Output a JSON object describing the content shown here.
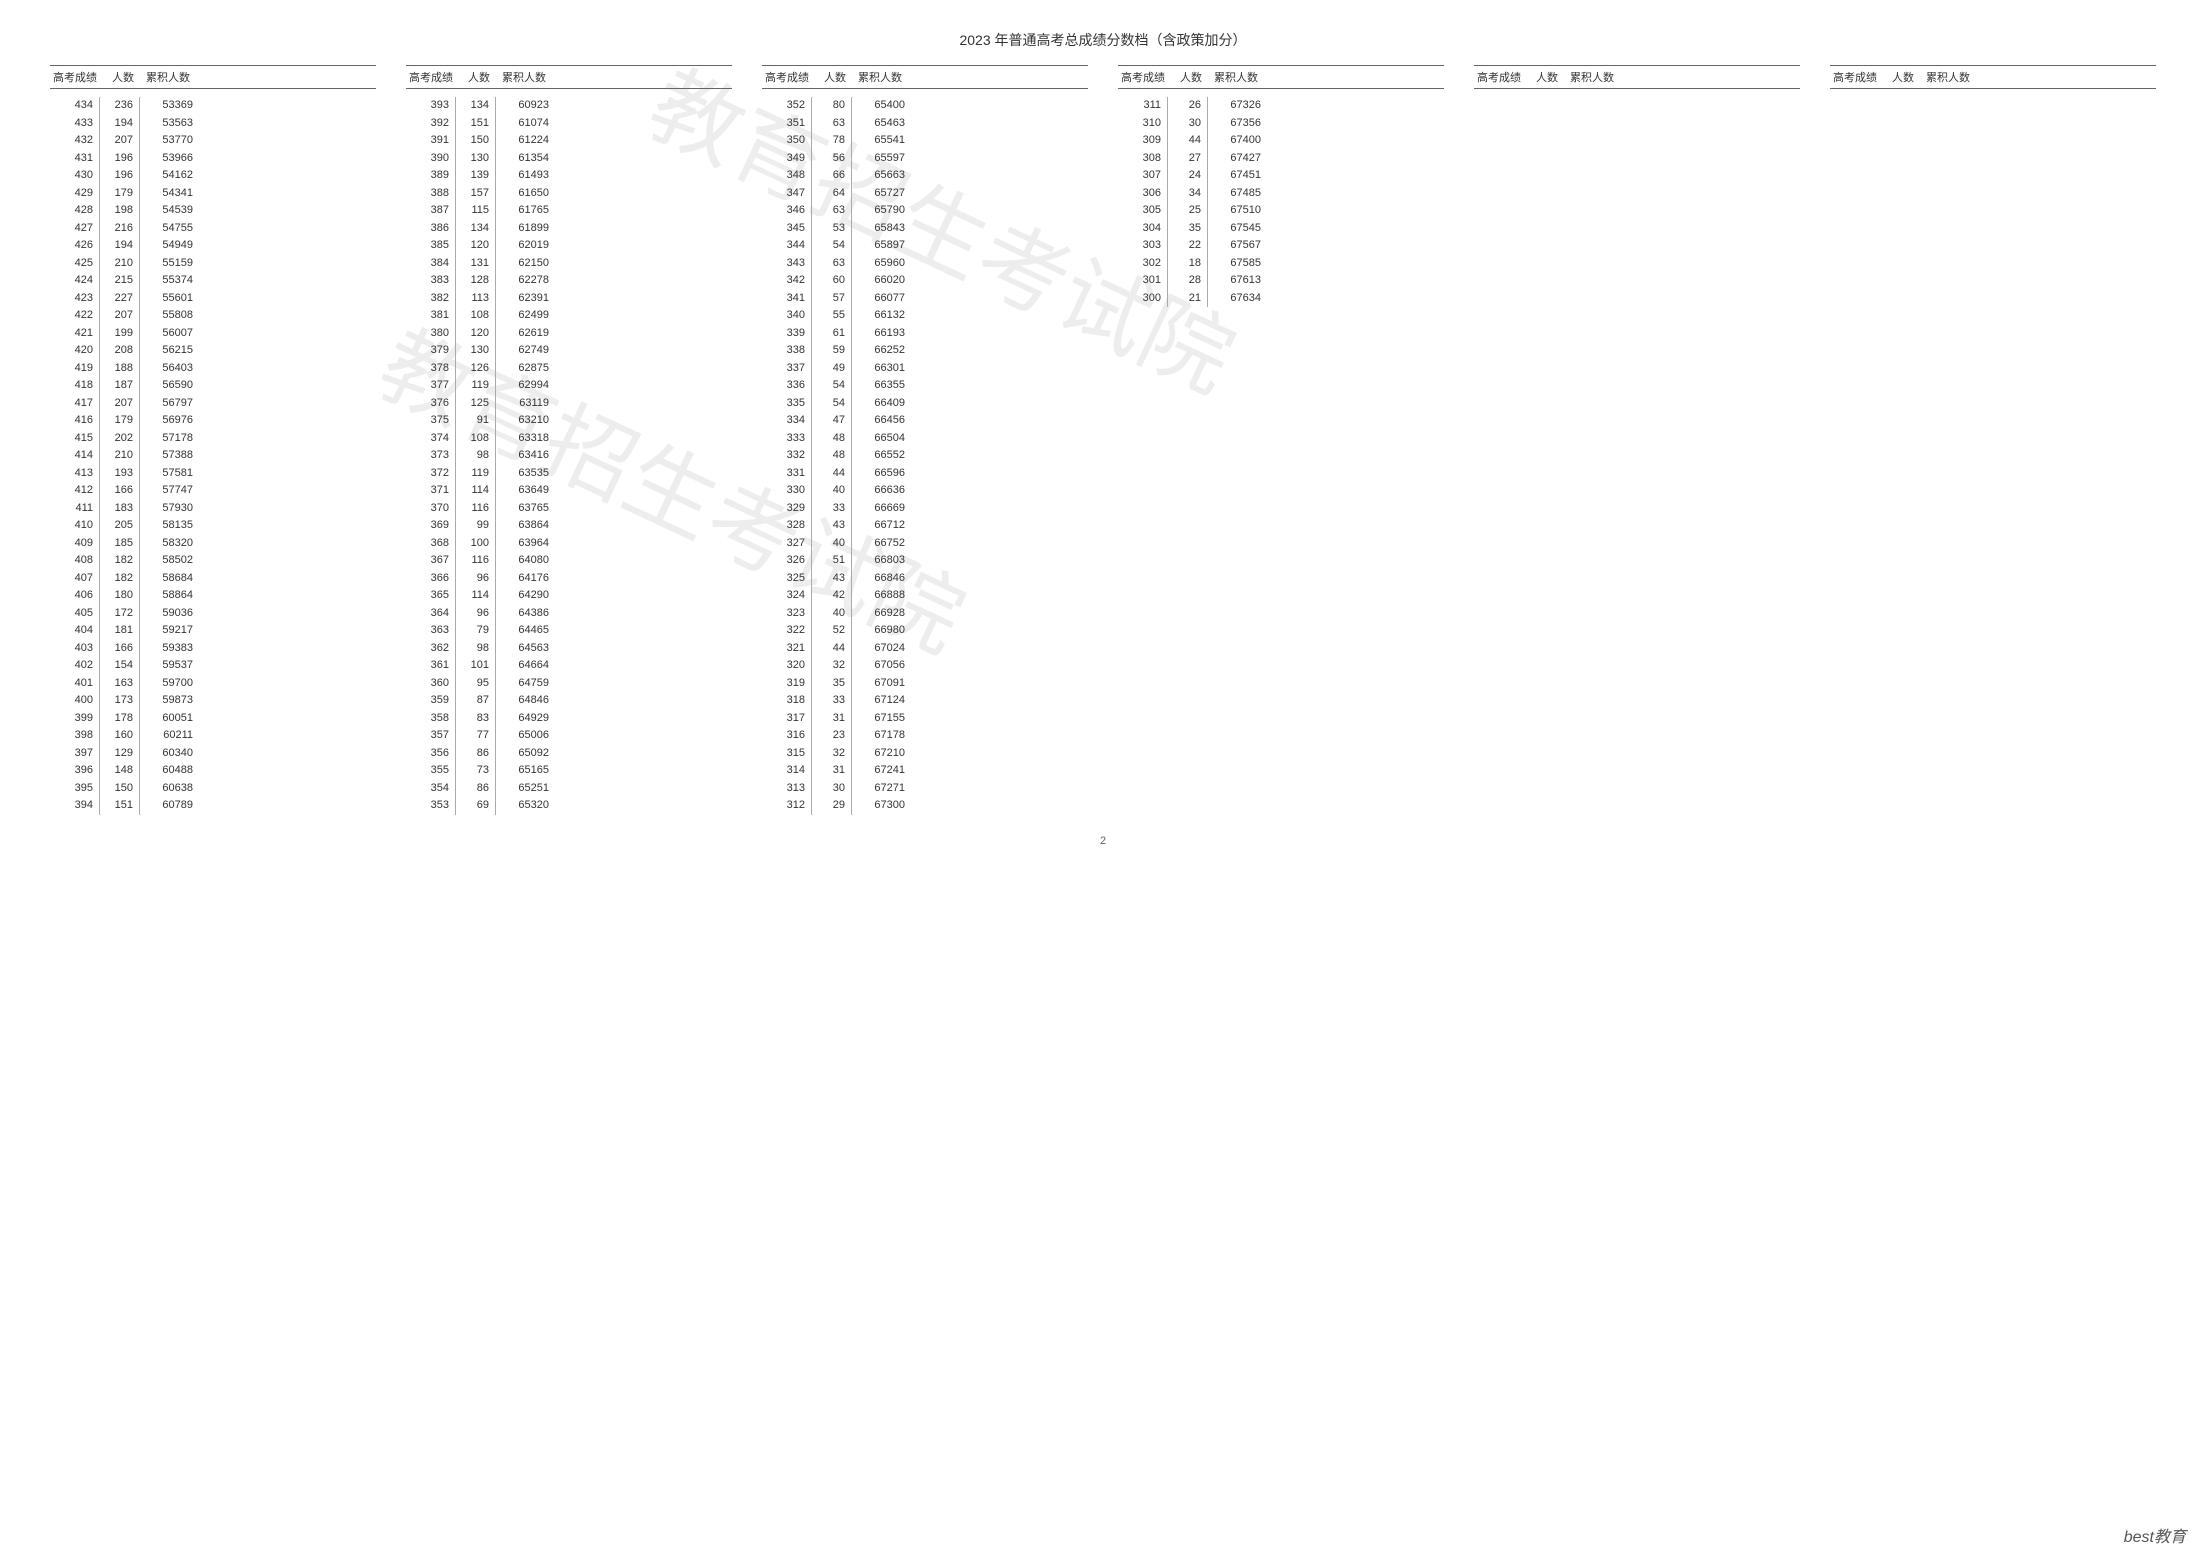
{
  "title": "2023 年普通高考总成绩分数档（含政策加分）",
  "page_number": "2",
  "footer_brand": "best教育",
  "headers": {
    "score": "高考成绩",
    "count": "人数",
    "cumulative": "累积人数"
  },
  "watermark_text": "教育招生考试院",
  "columns": [
    [
      {
        "s": 434,
        "c": 236,
        "m": 53369
      },
      {
        "s": 433,
        "c": 194,
        "m": 53563
      },
      {
        "s": 432,
        "c": 207,
        "m": 53770
      },
      {
        "s": 431,
        "c": 196,
        "m": 53966
      },
      {
        "s": 430,
        "c": 196,
        "m": 54162
      },
      {
        "s": 429,
        "c": 179,
        "m": 54341
      },
      {
        "s": 428,
        "c": 198,
        "m": 54539
      },
      {
        "s": 427,
        "c": 216,
        "m": 54755
      },
      {
        "s": 426,
        "c": 194,
        "m": 54949
      },
      {
        "s": 425,
        "c": 210,
        "m": 55159
      },
      {
        "s": 424,
        "c": 215,
        "m": 55374
      },
      {
        "s": 423,
        "c": 227,
        "m": 55601
      },
      {
        "s": 422,
        "c": 207,
        "m": 55808
      },
      {
        "s": 421,
        "c": 199,
        "m": 56007
      },
      {
        "s": 420,
        "c": 208,
        "m": 56215
      },
      {
        "s": 419,
        "c": 188,
        "m": 56403
      },
      {
        "s": 418,
        "c": 187,
        "m": 56590
      },
      {
        "s": 417,
        "c": 207,
        "m": 56797
      },
      {
        "s": 416,
        "c": 179,
        "m": 56976
      },
      {
        "s": 415,
        "c": 202,
        "m": 57178
      },
      {
        "s": 414,
        "c": 210,
        "m": 57388
      },
      {
        "s": 413,
        "c": 193,
        "m": 57581
      },
      {
        "s": 412,
        "c": 166,
        "m": 57747
      },
      {
        "s": 411,
        "c": 183,
        "m": 57930
      },
      {
        "s": 410,
        "c": 205,
        "m": 58135
      },
      {
        "s": 409,
        "c": 185,
        "m": 58320
      },
      {
        "s": 408,
        "c": 182,
        "m": 58502
      },
      {
        "s": 407,
        "c": 182,
        "m": 58684
      },
      {
        "s": 406,
        "c": 180,
        "m": 58864
      },
      {
        "s": 405,
        "c": 172,
        "m": 59036
      },
      {
        "s": 404,
        "c": 181,
        "m": 59217
      },
      {
        "s": 403,
        "c": 166,
        "m": 59383
      },
      {
        "s": 402,
        "c": 154,
        "m": 59537
      },
      {
        "s": 401,
        "c": 163,
        "m": 59700
      },
      {
        "s": 400,
        "c": 173,
        "m": 59873
      },
      {
        "s": 399,
        "c": 178,
        "m": 60051
      },
      {
        "s": 398,
        "c": 160,
        "m": 60211
      },
      {
        "s": 397,
        "c": 129,
        "m": 60340
      },
      {
        "s": 396,
        "c": 148,
        "m": 60488
      },
      {
        "s": 395,
        "c": 150,
        "m": 60638
      },
      {
        "s": 394,
        "c": 151,
        "m": 60789
      }
    ],
    [
      {
        "s": 393,
        "c": 134,
        "m": 60923
      },
      {
        "s": 392,
        "c": 151,
        "m": 61074
      },
      {
        "s": 391,
        "c": 150,
        "m": 61224
      },
      {
        "s": 390,
        "c": 130,
        "m": 61354
      },
      {
        "s": 389,
        "c": 139,
        "m": 61493
      },
      {
        "s": 388,
        "c": 157,
        "m": 61650
      },
      {
        "s": 387,
        "c": 115,
        "m": 61765
      },
      {
        "s": 386,
        "c": 134,
        "m": 61899
      },
      {
        "s": 385,
        "c": 120,
        "m": 62019
      },
      {
        "s": 384,
        "c": 131,
        "m": 62150
      },
      {
        "s": 383,
        "c": 128,
        "m": 62278
      },
      {
        "s": 382,
        "c": 113,
        "m": 62391
      },
      {
        "s": 381,
        "c": 108,
        "m": 62499
      },
      {
        "s": 380,
        "c": 120,
        "m": 62619
      },
      {
        "s": 379,
        "c": 130,
        "m": 62749
      },
      {
        "s": 378,
        "c": 126,
        "m": 62875
      },
      {
        "s": 377,
        "c": 119,
        "m": 62994
      },
      {
        "s": 376,
        "c": 125,
        "m": 63119
      },
      {
        "s": 375,
        "c": 91,
        "m": 63210
      },
      {
        "s": 374,
        "c": 108,
        "m": 63318
      },
      {
        "s": 373,
        "c": 98,
        "m": 63416
      },
      {
        "s": 372,
        "c": 119,
        "m": 63535
      },
      {
        "s": 371,
        "c": 114,
        "m": 63649
      },
      {
        "s": 370,
        "c": 116,
        "m": 63765
      },
      {
        "s": 369,
        "c": 99,
        "m": 63864
      },
      {
        "s": 368,
        "c": 100,
        "m": 63964
      },
      {
        "s": 367,
        "c": 116,
        "m": 64080
      },
      {
        "s": 366,
        "c": 96,
        "m": 64176
      },
      {
        "s": 365,
        "c": 114,
        "m": 64290
      },
      {
        "s": 364,
        "c": 96,
        "m": 64386
      },
      {
        "s": 363,
        "c": 79,
        "m": 64465
      },
      {
        "s": 362,
        "c": 98,
        "m": 64563
      },
      {
        "s": 361,
        "c": 101,
        "m": 64664
      },
      {
        "s": 360,
        "c": 95,
        "m": 64759
      },
      {
        "s": 359,
        "c": 87,
        "m": 64846
      },
      {
        "s": 358,
        "c": 83,
        "m": 64929
      },
      {
        "s": 357,
        "c": 77,
        "m": 65006
      },
      {
        "s": 356,
        "c": 86,
        "m": 65092
      },
      {
        "s": 355,
        "c": 73,
        "m": 65165
      },
      {
        "s": 354,
        "c": 86,
        "m": 65251
      },
      {
        "s": 353,
        "c": 69,
        "m": 65320
      }
    ],
    [
      {
        "s": 352,
        "c": 80,
        "m": 65400
      },
      {
        "s": 351,
        "c": 63,
        "m": 65463
      },
      {
        "s": 350,
        "c": 78,
        "m": 65541
      },
      {
        "s": 349,
        "c": 56,
        "m": 65597
      },
      {
        "s": 348,
        "c": 66,
        "m": 65663
      },
      {
        "s": 347,
        "c": 64,
        "m": 65727
      },
      {
        "s": 346,
        "c": 63,
        "m": 65790
      },
      {
        "s": 345,
        "c": 53,
        "m": 65843
      },
      {
        "s": 344,
        "c": 54,
        "m": 65897
      },
      {
        "s": 343,
        "c": 63,
        "m": 65960
      },
      {
        "s": 342,
        "c": 60,
        "m": 66020
      },
      {
        "s": 341,
        "c": 57,
        "m": 66077
      },
      {
        "s": 340,
        "c": 55,
        "m": 66132
      },
      {
        "s": 339,
        "c": 61,
        "m": 66193
      },
      {
        "s": 338,
        "c": 59,
        "m": 66252
      },
      {
        "s": 337,
        "c": 49,
        "m": 66301
      },
      {
        "s": 336,
        "c": 54,
        "m": 66355
      },
      {
        "s": 335,
        "c": 54,
        "m": 66409
      },
      {
        "s": 334,
        "c": 47,
        "m": 66456
      },
      {
        "s": 333,
        "c": 48,
        "m": 66504
      },
      {
        "s": 332,
        "c": 48,
        "m": 66552
      },
      {
        "s": 331,
        "c": 44,
        "m": 66596
      },
      {
        "s": 330,
        "c": 40,
        "m": 66636
      },
      {
        "s": 329,
        "c": 33,
        "m": 66669
      },
      {
        "s": 328,
        "c": 43,
        "m": 66712
      },
      {
        "s": 327,
        "c": 40,
        "m": 66752
      },
      {
        "s": 326,
        "c": 51,
        "m": 66803
      },
      {
        "s": 325,
        "c": 43,
        "m": 66846
      },
      {
        "s": 324,
        "c": 42,
        "m": 66888
      },
      {
        "s": 323,
        "c": 40,
        "m": 66928
      },
      {
        "s": 322,
        "c": 52,
        "m": 66980
      },
      {
        "s": 321,
        "c": 44,
        "m": 67024
      },
      {
        "s": 320,
        "c": 32,
        "m": 67056
      },
      {
        "s": 319,
        "c": 35,
        "m": 67091
      },
      {
        "s": 318,
        "c": 33,
        "m": 67124
      },
      {
        "s": 317,
        "c": 31,
        "m": 67155
      },
      {
        "s": 316,
        "c": 23,
        "m": 67178
      },
      {
        "s": 315,
        "c": 32,
        "m": 67210
      },
      {
        "s": 314,
        "c": 31,
        "m": 67241
      },
      {
        "s": 313,
        "c": 30,
        "m": 67271
      },
      {
        "s": 312,
        "c": 29,
        "m": 67300
      }
    ],
    [
      {
        "s": 311,
        "c": 26,
        "m": 67326
      },
      {
        "s": 310,
        "c": 30,
        "m": 67356
      },
      {
        "s": 309,
        "c": 44,
        "m": 67400
      },
      {
        "s": 308,
        "c": 27,
        "m": 67427
      },
      {
        "s": 307,
        "c": 24,
        "m": 67451
      },
      {
        "s": 306,
        "c": 34,
        "m": 67485
      },
      {
        "s": 305,
        "c": 25,
        "m": 67510
      },
      {
        "s": 304,
        "c": 35,
        "m": 67545
      },
      {
        "s": 303,
        "c": 22,
        "m": 67567
      },
      {
        "s": 302,
        "c": 18,
        "m": 67585
      },
      {
        "s": 301,
        "c": 28,
        "m": 67613
      },
      {
        "s": 300,
        "c": 21,
        "m": 67634
      }
    ],
    [],
    []
  ]
}
